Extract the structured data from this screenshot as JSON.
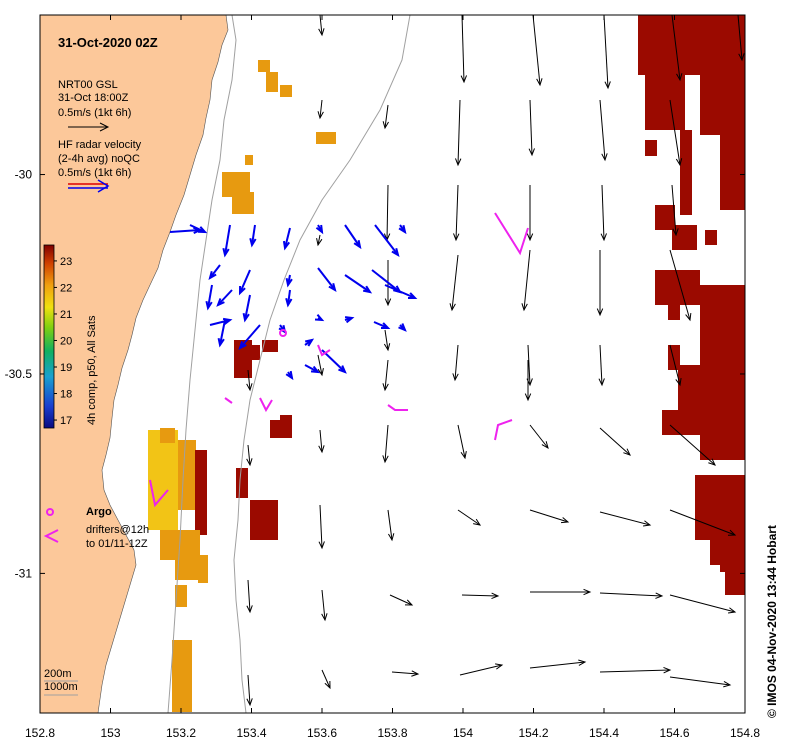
{
  "chart_data": {
    "type": "map",
    "title": "31-Oct-2020 02Z",
    "xlim": [
      152.8,
      154.8
    ],
    "ylim": [
      -31.35,
      -29.6
    ],
    "x_ticks": [
      "152.8",
      "153",
      "153.2",
      "153.4",
      "153.6",
      "153.8",
      "154",
      "154.2",
      "154.4",
      "154.6",
      "154.8"
    ],
    "y_ticks": [
      "-30",
      "-30.5",
      "-31"
    ],
    "x_tick_values": [
      152.8,
      153.0,
      153.2,
      153.4,
      153.6,
      153.8,
      154.0,
      154.2,
      154.4,
      154.6,
      154.8
    ],
    "y_tick_values": [
      -30,
      -30.5,
      -31
    ],
    "colors": {
      "land": "#fcc89a",
      "model_arrow": "#000000",
      "radar_arrow": "#0000ee",
      "drifter": "#ee22ee",
      "sst_hot": "#9b0a00",
      "sst_warm": "#e79a10",
      "sst_yellow": "#f2c416",
      "isobath": "#a0a0a0"
    },
    "legend": {
      "model_label_1": "NRT00 GSL",
      "model_label_2": "31-Oct 18:00Z",
      "model_label_3": "0.5m/s (1kt 6h)",
      "radar_label_1": "HF radar velocity",
      "radar_label_2": "(2-4h avg) noQC",
      "radar_label_3": "0.5m/s (1kt 6h)",
      "argo_label": "Argo",
      "drifter_label_1": "drifters@12h",
      "drifter_label_2": "to 01/11-12Z",
      "isobath_label_1": "200m",
      "isobath_label_2": "1000m"
    },
    "colorbar": {
      "label": "4h comp, p50, All Sats",
      "ticks": [
        "17",
        "18",
        "19",
        "20",
        "21",
        "22",
        "23"
      ],
      "range": [
        16.7,
        23.6
      ]
    },
    "credit": "© IMOS 04-Nov-2020 13:44 Hobart"
  }
}
